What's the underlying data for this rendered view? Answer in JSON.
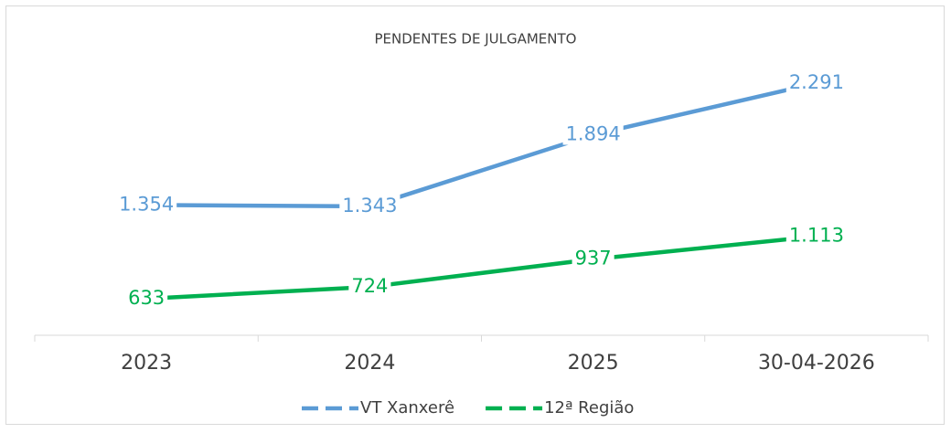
{
  "chart_data": {
    "type": "line",
    "title": "PENDENTES DE JULGAMENTO",
    "categories": [
      "2023",
      "2024",
      "2025",
      "30-04-2026"
    ],
    "series": [
      {
        "name": "VT Xanxerê",
        "color": "#5b9bd5",
        "values": [
          1354,
          1343,
          1894,
          2291
        ],
        "value_labels": [
          "1.354",
          "1.343",
          "1.894",
          "2.291"
        ]
      },
      {
        "name": "12ª Região",
        "color": "#00b050",
        "values": [
          633,
          724,
          937,
          1113
        ],
        "value_labels": [
          "633",
          "724",
          "937",
          "1.113"
        ]
      }
    ],
    "legend": "bottom"
  }
}
